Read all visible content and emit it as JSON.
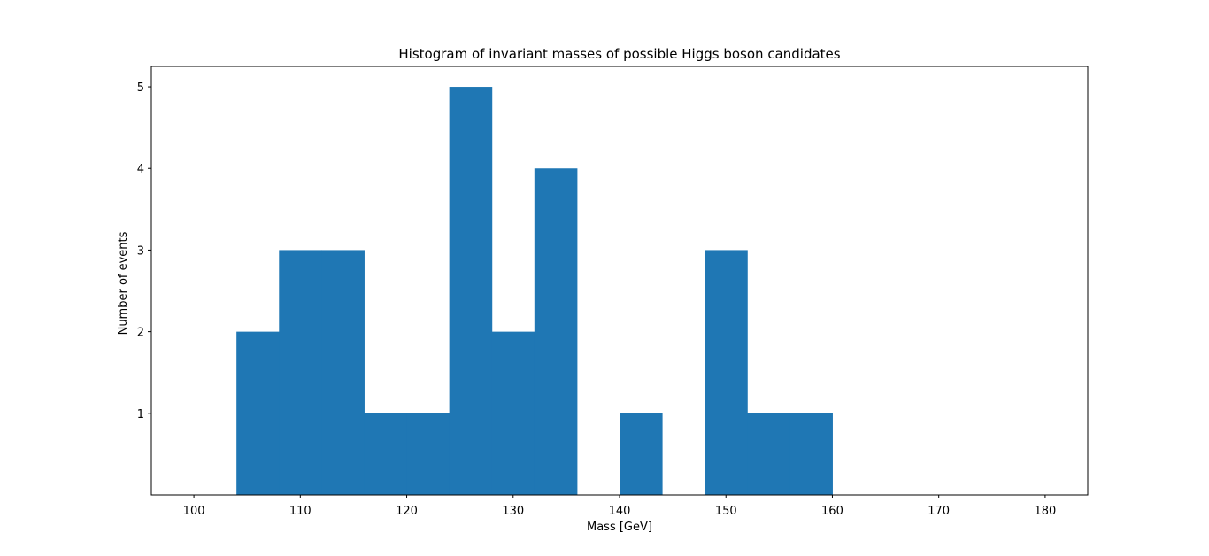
{
  "chart_data": {
    "type": "bar",
    "title": "Histogram of invariant masses of possible Higgs boson candidates",
    "xlabel": "Mass [GeV]",
    "ylabel": "Number of events",
    "bin_edges": [
      100,
      104,
      108,
      112,
      116,
      120,
      124,
      128,
      132,
      136,
      140,
      144,
      148,
      152,
      156,
      160,
      164,
      168,
      172,
      176,
      180
    ],
    "values": [
      0,
      2,
      3,
      3,
      1,
      1,
      5,
      2,
      4,
      0,
      1,
      0,
      3,
      1,
      1,
      0,
      0,
      0,
      0,
      0
    ],
    "xlim": [
      96,
      184
    ],
    "ylim": [
      0,
      5.25
    ],
    "xticks": [
      100,
      110,
      120,
      130,
      140,
      150,
      160,
      170,
      180
    ],
    "yticks": [
      1,
      2,
      3,
      4,
      5
    ],
    "bar_color": "#1f77b4",
    "grid": false
  }
}
